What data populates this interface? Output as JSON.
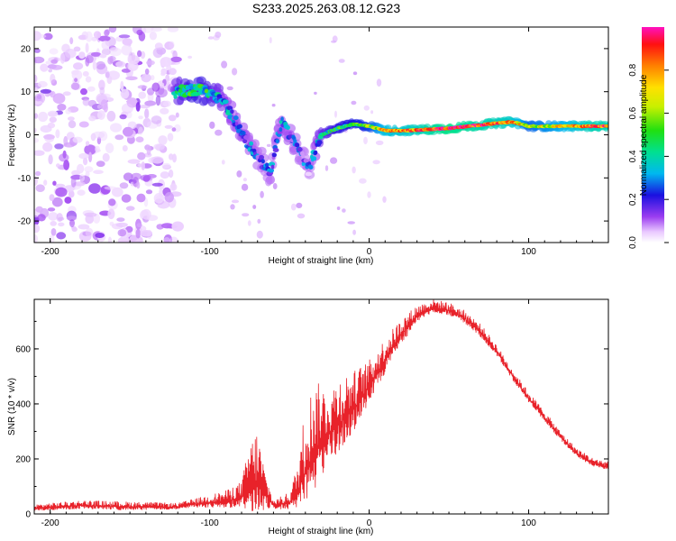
{
  "title": "S233.2025.263.08.12.G23",
  "chart_data": [
    {
      "type": "heatmap",
      "name": "spectrogram",
      "xlabel": "Height of straight line (km)",
      "ylabel": "Frequency (Hz)",
      "xlim": [
        -210,
        150
      ],
      "ylim": [
        -25,
        25
      ],
      "xticks": [
        {
          "v": -200,
          "label": "-200"
        },
        {
          "v": -100,
          "label": "-100"
        },
        {
          "v": 0,
          "label": "0"
        },
        {
          "v": 100,
          "label": "100"
        }
      ],
      "yticks": [
        {
          "v": 20,
          "label": "20"
        },
        {
          "v": 10,
          "label": "10"
        },
        {
          "v": 0,
          "label": "0"
        },
        {
          "v": -10,
          "label": "-10"
        },
        {
          "v": -20,
          "label": "-20"
        }
      ],
      "colorbar": {
        "label": "Normalized spectral amplitude",
        "range": [
          0,
          1
        ],
        "ticks": [
          {
            "v": 0.0,
            "label": "0.0"
          },
          {
            "v": 0.2,
            "label": "0.2"
          },
          {
            "v": 0.4,
            "label": "0.4"
          },
          {
            "v": 0.6,
            "label": "0.6"
          },
          {
            "v": 0.8,
            "label": "0.8"
          }
        ]
      },
      "ridge": [
        {
          "x": -120,
          "f": 10,
          "a": 0.35
        },
        {
          "x": -110,
          "f": 10.5,
          "a": 0.45
        },
        {
          "x": -100,
          "f": 10,
          "a": 0.4
        },
        {
          "x": -92,
          "f": 8,
          "a": 0.3
        },
        {
          "x": -85,
          "f": 4,
          "a": 0.25
        },
        {
          "x": -78,
          "f": -1,
          "a": 0.25
        },
        {
          "x": -70,
          "f": -5,
          "a": 0.22
        },
        {
          "x": -62,
          "f": -9,
          "a": 0.2
        },
        {
          "x": -55,
          "f": 3,
          "a": 0.25
        },
        {
          "x": -45,
          "f": -3,
          "a": 0.22
        },
        {
          "x": -38,
          "f": -8,
          "a": 0.18
        },
        {
          "x": -30,
          "f": 0,
          "a": 0.35
        },
        {
          "x": -20,
          "f": 1.5,
          "a": 0.45
        },
        {
          "x": -10,
          "f": 2.5,
          "a": 0.5
        },
        {
          "x": 0,
          "f": 2,
          "a": 0.55
        },
        {
          "x": 10,
          "f": 1,
          "a": 0.75
        },
        {
          "x": 25,
          "f": 1,
          "a": 0.8
        },
        {
          "x": 50,
          "f": 1.5,
          "a": 0.95
        },
        {
          "x": 75,
          "f": 2.5,
          "a": 0.85
        },
        {
          "x": 90,
          "f": 3,
          "a": 0.8
        },
        {
          "x": 100,
          "f": 2,
          "a": 0.6
        },
        {
          "x": 120,
          "f": 2,
          "a": 0.7
        },
        {
          "x": 140,
          "f": 2,
          "a": 0.85
        }
      ]
    },
    {
      "type": "line",
      "name": "snr",
      "xlabel": "Height of straight line (km)",
      "ylabel": "SNR (10 * v/v)",
      "xlim": [
        -210,
        150
      ],
      "ylim": [
        0,
        780
      ],
      "color": "#e8222a",
      "xticks": [
        {
          "v": -200,
          "label": "-200"
        },
        {
          "v": -100,
          "label": "-100"
        },
        {
          "v": 0,
          "label": "0"
        },
        {
          "v": 100,
          "label": "100"
        }
      ],
      "yticks": [
        {
          "v": 0,
          "label": "0"
        },
        {
          "v": 200,
          "label": "200"
        },
        {
          "v": 400,
          "label": "400"
        },
        {
          "v": 600,
          "label": "600"
        }
      ],
      "envelope": {
        "x": [
          -210,
          -180,
          -150,
          -120,
          -110,
          -100,
          -90,
          -80,
          -75,
          -70,
          -65,
          -60,
          -50,
          -45,
          -40,
          -35,
          -30,
          -25,
          -20,
          -10,
          0,
          10,
          20,
          30,
          40,
          50,
          60,
          70,
          80,
          90,
          100,
          110,
          120,
          130,
          140,
          150
        ],
        "base": [
          20,
          30,
          25,
          25,
          35,
          40,
          45,
          60,
          100,
          110,
          70,
          30,
          40,
          80,
          150,
          220,
          260,
          290,
          320,
          380,
          460,
          560,
          650,
          720,
          750,
          740,
          710,
          660,
          590,
          500,
          420,
          350,
          280,
          220,
          185,
          170
        ],
        "amp": [
          15,
          20,
          20,
          15,
          20,
          30,
          40,
          60,
          160,
          200,
          80,
          20,
          40,
          100,
          250,
          250,
          220,
          150,
          180,
          140,
          100,
          80,
          60,
          40,
          30,
          30,
          30,
          30,
          25,
          25,
          25,
          25,
          20,
          20,
          20,
          20
        ]
      }
    }
  ]
}
